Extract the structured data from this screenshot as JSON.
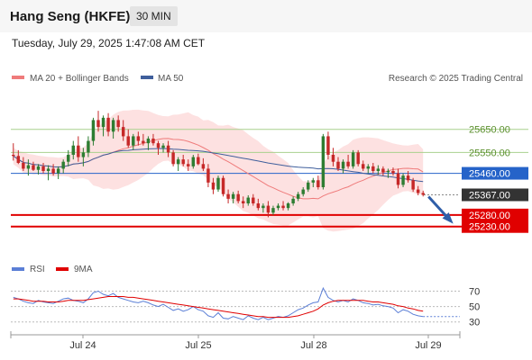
{
  "header": {
    "title": "Hang Seng (HKFE)",
    "timeframe": "30 MIN",
    "timestamp": "Tuesday, July 29, 2025 1:47:08 AM CET"
  },
  "legend": {
    "ma20_label": "MA 20 + Bollinger Bands",
    "ma50_label": "MA 50",
    "credit": "Research © 2025 Trading Central",
    "rsi_label": "RSI",
    "rsi_ma_label": "9MA"
  },
  "colors": {
    "up": "#2e7d32",
    "down": "#c62828",
    "boll_fill": "#fde1e1",
    "ma20": "#ef7b7b",
    "ma50": "#3f5f9c",
    "resistance": "#a9d18e",
    "pivot": "#2563c9",
    "support": "#e00000",
    "current": "#333333",
    "rsi": "#5b7fd6",
    "rsi_ma": "#e00000",
    "arrow": "#2f5ea8"
  },
  "chart_data": [
    {
      "type": "line",
      "title": "",
      "ylim": [
        25120,
        25820
      ],
      "x_ticks": [
        "Jul 24",
        "Jul 25",
        "Jul 28",
        "Jul 29"
      ],
      "levels": [
        {
          "value": 25650,
          "label": "25650.00",
          "kind": "resistance"
        },
        {
          "value": 25550,
          "label": "25550.00",
          "kind": "resistance"
        },
        {
          "value": 25460,
          "label": "25460.00",
          "kind": "pivot"
        },
        {
          "value": 25367,
          "label": "25367.00",
          "kind": "current"
        },
        {
          "value": 25280,
          "label": "25280.00",
          "kind": "support"
        },
        {
          "value": 25230,
          "label": "25230.00",
          "kind": "support"
        }
      ],
      "forecast_arrow": {
        "from": 25367,
        "to": 25230
      },
      "ohlc": [
        [
          25540,
          25590,
          25515,
          25535
        ],
        [
          25535,
          25560,
          25500,
          25505
        ],
        [
          25505,
          25530,
          25470,
          25480
        ],
        [
          25480,
          25520,
          25450,
          25495
        ],
        [
          25495,
          25510,
          25470,
          25475
        ],
        [
          25475,
          25500,
          25455,
          25490
        ],
        [
          25490,
          25505,
          25460,
          25470
        ],
        [
          25470,
          25495,
          25430,
          25480
        ],
        [
          25480,
          25500,
          25450,
          25460
        ],
        [
          25460,
          25490,
          25435,
          25480
        ],
        [
          25480,
          25520,
          25460,
          25510
        ],
        [
          25510,
          25560,
          25490,
          25540
        ],
        [
          25540,
          25600,
          25520,
          25580
        ],
        [
          25580,
          25620,
          25510,
          25530
        ],
        [
          25530,
          25570,
          25490,
          25550
        ],
        [
          25550,
          25620,
          25530,
          25600
        ],
        [
          25600,
          25700,
          25580,
          25690
        ],
        [
          25690,
          25730,
          25640,
          25660
        ],
        [
          25660,
          25710,
          25620,
          25700
        ],
        [
          25700,
          25720,
          25620,
          25640
        ],
        [
          25640,
          25700,
          25610,
          25690
        ],
        [
          25690,
          25710,
          25640,
          25660
        ],
        [
          25660,
          25690,
          25600,
          25620
        ],
        [
          25620,
          25650,
          25570,
          25580
        ],
        [
          25580,
          25630,
          25560,
          25620
        ],
        [
          25620,
          25640,
          25580,
          25600
        ],
        [
          25600,
          25630,
          25580,
          25590
        ],
        [
          25590,
          25620,
          25560,
          25610
        ],
        [
          25610,
          25630,
          25580,
          25590
        ],
        [
          25590,
          25600,
          25540,
          25570
        ],
        [
          25570,
          25590,
          25550,
          25580
        ],
        [
          25580,
          25600,
          25530,
          25550
        ],
        [
          25550,
          25560,
          25490,
          25500
        ],
        [
          25500,
          25530,
          25470,
          25520
        ],
        [
          25520,
          25540,
          25490,
          25500
        ],
        [
          25500,
          25520,
          25470,
          25490
        ],
        [
          25490,
          25540,
          25480,
          25530
        ],
        [
          25530,
          25545,
          25495,
          25500
        ],
        [
          25500,
          25525,
          25470,
          25480
        ],
        [
          25480,
          25500,
          25400,
          25420
        ],
        [
          25420,
          25440,
          25370,
          25390
        ],
        [
          25390,
          25450,
          25380,
          25440
        ],
        [
          25440,
          25450,
          25360,
          25370
        ],
        [
          25370,
          25390,
          25330,
          25350
        ],
        [
          25350,
          25380,
          25330,
          25370
        ],
        [
          25370,
          25385,
          25330,
          25340
        ],
        [
          25340,
          25360,
          25310,
          25330
        ],
        [
          25330,
          25365,
          25320,
          25355
        ],
        [
          25355,
          25370,
          25320,
          25330
        ],
        [
          25330,
          25350,
          25300,
          25310
        ],
        [
          25310,
          25330,
          25290,
          25320
        ],
        [
          25320,
          25340,
          25270,
          25290
        ],
        [
          25290,
          25320,
          25280,
          25310
        ],
        [
          25310,
          25330,
          25300,
          25320
        ],
        [
          25320,
          25340,
          25300,
          25310
        ],
        [
          25310,
          25335,
          25300,
          25330
        ],
        [
          25330,
          25360,
          25320,
          25350
        ],
        [
          25350,
          25380,
          25340,
          25370
        ],
        [
          25370,
          25400,
          25360,
          25390
        ],
        [
          25390,
          25430,
          25380,
          25420
        ],
        [
          25420,
          25440,
          25400,
          25430
        ],
        [
          25430,
          25450,
          25390,
          25400
        ],
        [
          25400,
          25630,
          25390,
          25620
        ],
        [
          25620,
          25640,
          25520,
          25540
        ],
        [
          25540,
          25570,
          25490,
          25510
        ],
        [
          25510,
          25530,
          25470,
          25480
        ],
        [
          25480,
          25520,
          25460,
          25510
        ],
        [
          25510,
          25540,
          25480,
          25490
        ],
        [
          25490,
          25560,
          25480,
          25550
        ],
        [
          25550,
          25560,
          25490,
          25500
        ],
        [
          25500,
          25515,
          25470,
          25480
        ],
        [
          25480,
          25500,
          25460,
          25490
        ],
        [
          25490,
          25505,
          25460,
          25470
        ],
        [
          25470,
          25495,
          25455,
          25480
        ],
        [
          25480,
          25490,
          25450,
          25465
        ],
        [
          25465,
          25480,
          25440,
          25470
        ],
        [
          25470,
          25485,
          25450,
          25460
        ],
        [
          25460,
          25480,
          25395,
          25410
        ],
        [
          25410,
          25460,
          25400,
          25450
        ],
        [
          25450,
          25470,
          25420,
          25430
        ],
        [
          25430,
          25440,
          25380,
          25390
        ],
        [
          25390,
          25405,
          25365,
          25375
        ],
        [
          25375,
          25385,
          25360,
          25367
        ]
      ],
      "series": [
        {
          "name": "MA 20 + Bollinger Bands"
        },
        {
          "name": "MA 50"
        }
      ]
    },
    {
      "type": "line",
      "title": "",
      "ylim": [
        25,
        80
      ],
      "y_ticks": [
        70,
        50,
        30
      ],
      "series": [
        {
          "name": "RSI",
          "values": [
            62,
            60,
            57,
            55,
            54,
            58,
            56,
            55,
            54,
            57,
            60,
            61,
            58,
            57,
            55,
            60,
            68,
            70,
            66,
            64,
            67,
            62,
            60,
            58,
            56,
            55,
            57,
            55,
            52,
            50,
            53,
            49,
            45,
            47,
            44,
            46,
            50,
            46,
            44,
            38,
            36,
            42,
            35,
            34,
            37,
            35,
            33,
            38,
            35,
            33,
            36,
            33,
            35,
            37,
            36,
            38,
            42,
            46,
            48,
            52,
            55,
            56,
            74,
            62,
            58,
            56,
            58,
            56,
            60,
            58,
            55,
            54,
            52,
            53,
            51,
            50,
            48,
            42,
            46,
            44,
            40,
            38,
            37
          ]
        },
        {
          "name": "9MA",
          "values": [
            60,
            60,
            59,
            58,
            57,
            57,
            57,
            56,
            56,
            56,
            57,
            58,
            58,
            58,
            58,
            59,
            60,
            61,
            62,
            63,
            63,
            63,
            63,
            62,
            62,
            61,
            60,
            59,
            58,
            57,
            56,
            55,
            54,
            53,
            52,
            51,
            50,
            49,
            48,
            47,
            46,
            45,
            44,
            43,
            42,
            41,
            40,
            39,
            38,
            37,
            37,
            36,
            36,
            36,
            36,
            36,
            37,
            38,
            40,
            42,
            44,
            47,
            52,
            55,
            57,
            58,
            58,
            58,
            58,
            58,
            58,
            57,
            56,
            56,
            55,
            54,
            53,
            51,
            50,
            48,
            47,
            45,
            44
          ]
        }
      ]
    }
  ]
}
